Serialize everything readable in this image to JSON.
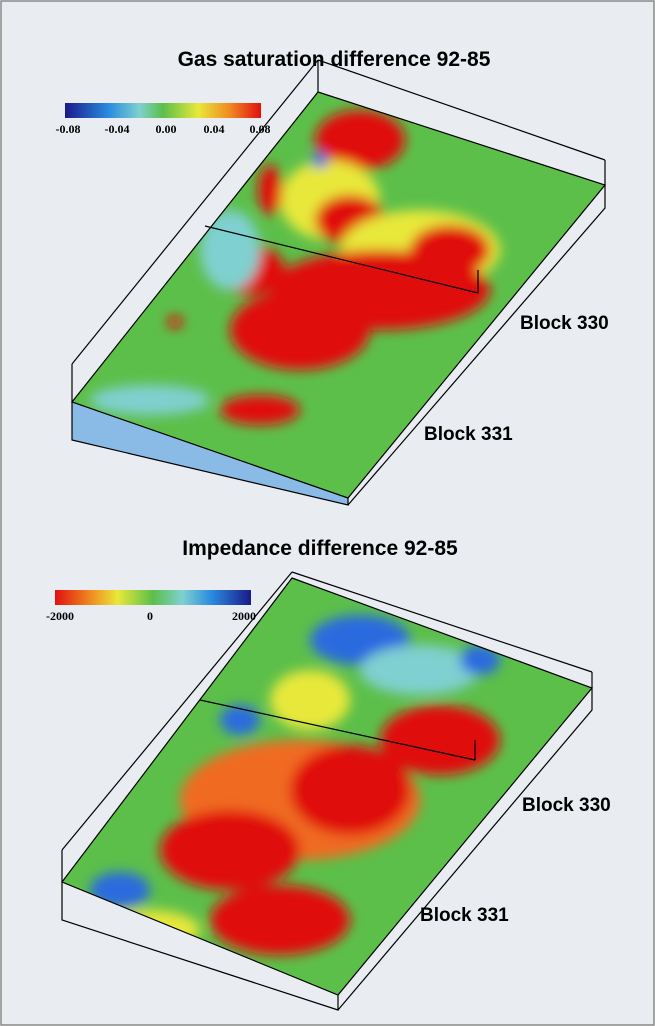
{
  "panels": [
    {
      "title": "Gas saturation difference 92-85",
      "colorbar_ticks": [
        "-0.08",
        "-0.04",
        "0.00",
        "0.04",
        "0.08"
      ],
      "block_labels": [
        "Block 330",
        "Block 331"
      ]
    },
    {
      "title": "Impedance difference 92-85",
      "colorbar_ticks": [
        "-2000",
        "0",
        "2000"
      ],
      "block_labels": [
        "Block 330",
        "Block 331"
      ]
    }
  ]
}
